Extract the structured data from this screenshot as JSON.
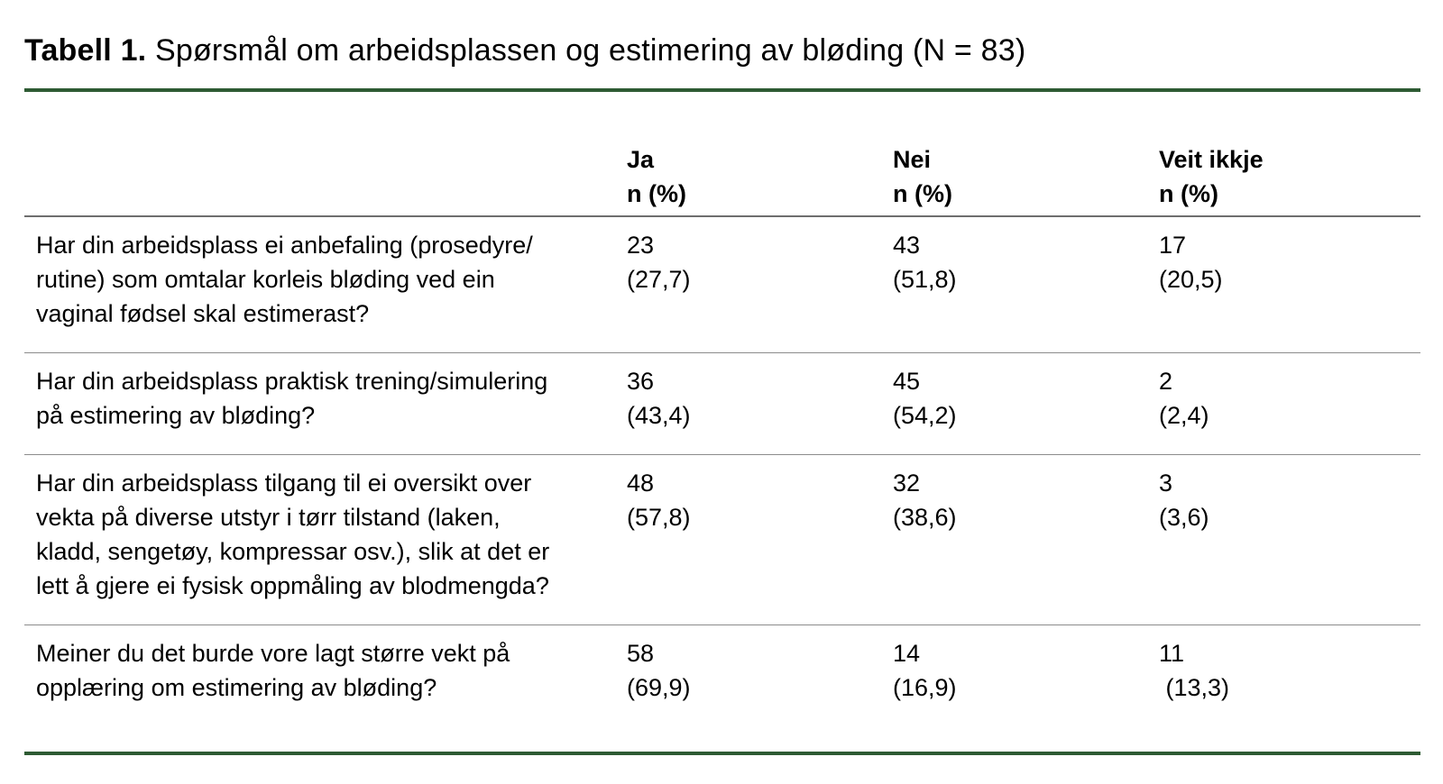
{
  "title": {
    "label": "Tabell 1.",
    "text": " Spørsmål om arbeidsplassen og estimering av bløding (N = 83)"
  },
  "colors": {
    "accent_green": "#2e5b33",
    "header_rule_gray": "#6e6e6e",
    "row_rule_gray": "#8c8c8c",
    "text_black": "#000000"
  },
  "table": {
    "columns": [
      {
        "name": "Ja",
        "sub": "n (%)"
      },
      {
        "name": "Nei",
        "sub": "n (%)"
      },
      {
        "name": "Veit ikkje",
        "sub": "n (%)"
      }
    ],
    "rows": [
      {
        "question": "Har din arbeidsplass ei anbefaling (prosedyre/\nrutine) som omtalar korleis bløding ved ein\nvaginal fødsel skal estimerast?",
        "cells": [
          {
            "n": "23",
            "pct": "(27,7)"
          },
          {
            "n": "43",
            "pct": "(51,8)"
          },
          {
            "n": "17",
            "pct": "(20,5)"
          }
        ]
      },
      {
        "question": "Har din arbeidsplass praktisk trening/simulering\npå estimering av bløding?",
        "cells": [
          {
            "n": "36",
            "pct": "(43,4)"
          },
          {
            "n": "45",
            "pct": "(54,2)"
          },
          {
            "n": "2",
            "pct": "(2,4)"
          }
        ]
      },
      {
        "question": "Har din arbeidsplass tilgang til ei oversikt over\nvekta på diverse utstyr i tørr tilstand (laken,\nkladd, sengetøy, kompressar osv.), slik at det er\nlett å gjere ei fysisk oppmåling av blodmengda?",
        "cells": [
          {
            "n": "48",
            "pct": "(57,8)"
          },
          {
            "n": "32",
            "pct": "(38,6)"
          },
          {
            "n": "3",
            "pct": "(3,6)"
          }
        ]
      },
      {
        "question": "Meiner du det burde vore lagt større vekt på\nopplæring om estimering av bløding?",
        "cells": [
          {
            "n": "58",
            "pct": "(69,9)"
          },
          {
            "n": "14",
            "pct": "(16,9)"
          },
          {
            "n": "11",
            "pct": " (13,3)"
          }
        ]
      }
    ]
  }
}
